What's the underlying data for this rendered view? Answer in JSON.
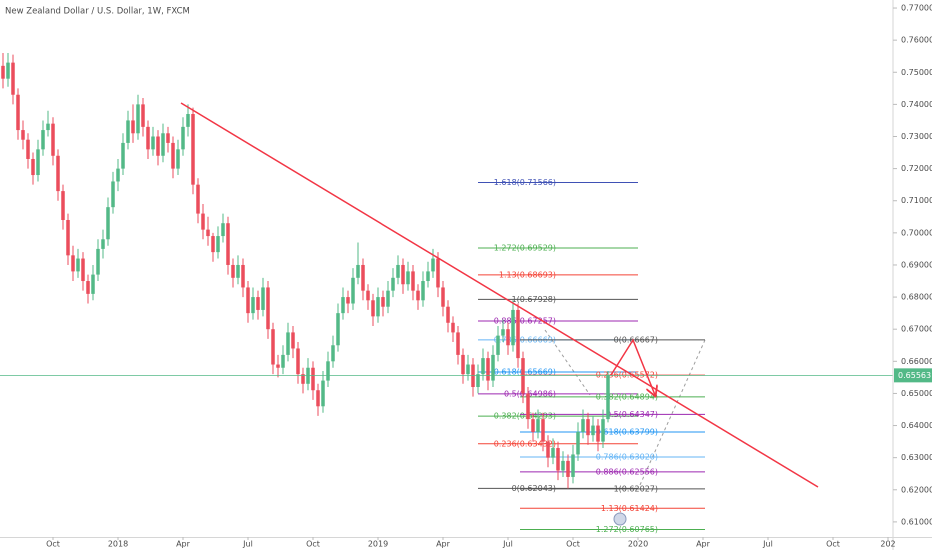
{
  "chart_data": {
    "type": "candlestick",
    "title": "New Zealand Dollar / U.S. Dollar, 1W, FXCM",
    "up_color": "#53b987",
    "down_color": "#eb4d5c",
    "xlim": [
      -0.6,
      178
    ],
    "ylim": [
      0.6053,
      0.7725
    ],
    "xticks": [
      {
        "value": 10,
        "label": "Oct"
      },
      {
        "value": 23,
        "label": "2018"
      },
      {
        "value": 36,
        "label": "Apr"
      },
      {
        "value": 49,
        "label": "Jul"
      },
      {
        "value": 62,
        "label": "Oct"
      },
      {
        "value": 75,
        "label": "2019"
      },
      {
        "value": 88,
        "label": "Apr"
      },
      {
        "value": 101,
        "label": "Jul"
      },
      {
        "value": 114,
        "label": "Oct"
      },
      {
        "value": 127,
        "label": "2020"
      },
      {
        "value": 140,
        "label": "Apr"
      },
      {
        "value": 153,
        "label": "Jul"
      },
      {
        "value": 166,
        "label": "Oct"
      },
      {
        "value": 177,
        "label": "202"
      }
    ],
    "yticks": [
      {
        "value": 0.61,
        "label": "0.61000"
      },
      {
        "value": 0.62,
        "label": "0.62000"
      },
      {
        "value": 0.63,
        "label": "0.63000"
      },
      {
        "value": 0.64,
        "label": "0.64000"
      },
      {
        "value": 0.65,
        "label": "0.65000"
      },
      {
        "value": 0.66,
        "label": "0.66000"
      },
      {
        "value": 0.67,
        "label": "0.67000"
      },
      {
        "value": 0.68,
        "label": "0.68000"
      },
      {
        "value": 0.69,
        "label": "0.69000"
      },
      {
        "value": 0.7,
        "label": "0.70000"
      },
      {
        "value": 0.71,
        "label": "0.71000"
      },
      {
        "value": 0.72,
        "label": "0.72000"
      },
      {
        "value": 0.73,
        "label": "0.73000"
      },
      {
        "value": 0.74,
        "label": "0.74000"
      },
      {
        "value": 0.75,
        "label": "0.75000"
      },
      {
        "value": 0.76,
        "label": "0.76000"
      },
      {
        "value": 0.77,
        "label": "0.77000"
      }
    ],
    "last_price": {
      "value": 0.65563,
      "label": "0.65563",
      "color": "#53b987"
    },
    "candles": [
      [
        0.752,
        0.756,
        0.745,
        0.748
      ],
      [
        0.748,
        0.756,
        0.7455,
        0.753
      ],
      [
        0.753,
        0.7555,
        0.74,
        0.743
      ],
      [
        0.743,
        0.745,
        0.729,
        0.732
      ],
      [
        0.732,
        0.735,
        0.726,
        0.729
      ],
      [
        0.729,
        0.731,
        0.72,
        0.723
      ],
      [
        0.723,
        0.725,
        0.715,
        0.718
      ],
      [
        0.718,
        0.729,
        0.716,
        0.726
      ],
      [
        0.726,
        0.735,
        0.724,
        0.732
      ],
      [
        0.732,
        0.738,
        0.73,
        0.734
      ],
      [
        0.734,
        0.736,
        0.721,
        0.724
      ],
      [
        0.724,
        0.726,
        0.71,
        0.713
      ],
      [
        0.713,
        0.715,
        0.701,
        0.704
      ],
      [
        0.704,
        0.706,
        0.69,
        0.693
      ],
      [
        0.693,
        0.696,
        0.685,
        0.688
      ],
      [
        0.688,
        0.695,
        0.686,
        0.692
      ],
      [
        0.692,
        0.694,
        0.682,
        0.685
      ],
      [
        0.685,
        0.687,
        0.678,
        0.681
      ],
      [
        0.681,
        0.69,
        0.679,
        0.687
      ],
      [
        0.687,
        0.698,
        0.685,
        0.695
      ],
      [
        0.695,
        0.701,
        0.692,
        0.698
      ],
      [
        0.698,
        0.711,
        0.696,
        0.708
      ],
      [
        0.708,
        0.719,
        0.706,
        0.716
      ],
      [
        0.716,
        0.723,
        0.713,
        0.72
      ],
      [
        0.72,
        0.731,
        0.718,
        0.728
      ],
      [
        0.728,
        0.738,
        0.726,
        0.735
      ],
      [
        0.735,
        0.74,
        0.728,
        0.731
      ],
      [
        0.731,
        0.743,
        0.729,
        0.74
      ],
      [
        0.74,
        0.742,
        0.73,
        0.733
      ],
      [
        0.733,
        0.735,
        0.723,
        0.726
      ],
      [
        0.726,
        0.733,
        0.724,
        0.73
      ],
      [
        0.73,
        0.732,
        0.721,
        0.724
      ],
      [
        0.724,
        0.734,
        0.722,
        0.731
      ],
      [
        0.731,
        0.733,
        0.725,
        0.728
      ],
      [
        0.728,
        0.73,
        0.717,
        0.72
      ],
      [
        0.72,
        0.729,
        0.718,
        0.726
      ],
      [
        0.726,
        0.736,
        0.724,
        0.733
      ],
      [
        0.733,
        0.74,
        0.73,
        0.737
      ],
      [
        0.737,
        0.739,
        0.712,
        0.715
      ],
      [
        0.715,
        0.717,
        0.703,
        0.706
      ],
      [
        0.706,
        0.709,
        0.698,
        0.701
      ],
      [
        0.701,
        0.705,
        0.696,
        0.699
      ],
      [
        0.699,
        0.7,
        0.691,
        0.694
      ],
      [
        0.694,
        0.702,
        0.692,
        0.699
      ],
      [
        0.699,
        0.706,
        0.697,
        0.703
      ],
      [
        0.703,
        0.705,
        0.687,
        0.69
      ],
      [
        0.69,
        0.692,
        0.683,
        0.686
      ],
      [
        0.686,
        0.693,
        0.684,
        0.69
      ],
      [
        0.69,
        0.692,
        0.68,
        0.683
      ],
      [
        0.683,
        0.685,
        0.672,
        0.675
      ],
      [
        0.675,
        0.683,
        0.673,
        0.68
      ],
      [
        0.68,
        0.682,
        0.673,
        0.676
      ],
      [
        0.676,
        0.686,
        0.674,
        0.683
      ],
      [
        0.683,
        0.685,
        0.667,
        0.67
      ],
      [
        0.67,
        0.672,
        0.656,
        0.659
      ],
      [
        0.659,
        0.662,
        0.655,
        0.658
      ],
      [
        0.658,
        0.665,
        0.656,
        0.662
      ],
      [
        0.662,
        0.672,
        0.66,
        0.669
      ],
      [
        0.669,
        0.671,
        0.661,
        0.664
      ],
      [
        0.664,
        0.666,
        0.653,
        0.656
      ],
      [
        0.656,
        0.658,
        0.65,
        0.653
      ],
      [
        0.653,
        0.661,
        0.651,
        0.658
      ],
      [
        0.658,
        0.66,
        0.648,
        0.651
      ],
      [
        0.651,
        0.653,
        0.643,
        0.646
      ],
      [
        0.646,
        0.657,
        0.644,
        0.654
      ],
      [
        0.654,
        0.663,
        0.652,
        0.66
      ],
      [
        0.66,
        0.668,
        0.658,
        0.665
      ],
      [
        0.665,
        0.678,
        0.663,
        0.675
      ],
      [
        0.675,
        0.683,
        0.673,
        0.68
      ],
      [
        0.68,
        0.682,
        0.675,
        0.678
      ],
      [
        0.678,
        0.689,
        0.676,
        0.686
      ],
      [
        0.686,
        0.697,
        0.684,
        0.69
      ],
      [
        0.69,
        0.692,
        0.679,
        0.682
      ],
      [
        0.682,
        0.684,
        0.676,
        0.679
      ],
      [
        0.679,
        0.681,
        0.671,
        0.674
      ],
      [
        0.674,
        0.683,
        0.672,
        0.68
      ],
      [
        0.68,
        0.682,
        0.674,
        0.677
      ],
      [
        0.677,
        0.685,
        0.675,
        0.682
      ],
      [
        0.682,
        0.689,
        0.68,
        0.686
      ],
      [
        0.686,
        0.693,
        0.684,
        0.69
      ],
      [
        0.69,
        0.692,
        0.681,
        0.684
      ],
      [
        0.684,
        0.691,
        0.682,
        0.688
      ],
      [
        0.688,
        0.69,
        0.679,
        0.682
      ],
      [
        0.682,
        0.684,
        0.676,
        0.679
      ],
      [
        0.679,
        0.688,
        0.677,
        0.685
      ],
      [
        0.685,
        0.691,
        0.683,
        0.688
      ],
      [
        0.688,
        0.695,
        0.686,
        0.692
      ],
      [
        0.692,
        0.694,
        0.68,
        0.683
      ],
      [
        0.683,
        0.685,
        0.674,
        0.677
      ],
      [
        0.677,
        0.679,
        0.669,
        0.672
      ],
      [
        0.672,
        0.674,
        0.666,
        0.669
      ],
      [
        0.669,
        0.671,
        0.659,
        0.662
      ],
      [
        0.662,
        0.664,
        0.653,
        0.656
      ],
      [
        0.656,
        0.662,
        0.654,
        0.659
      ],
      [
        0.659,
        0.661,
        0.649,
        0.652
      ],
      [
        0.652,
        0.659,
        0.65,
        0.656
      ],
      [
        0.656,
        0.664,
        0.654,
        0.661
      ],
      [
        0.661,
        0.663,
        0.651,
        0.654
      ],
      [
        0.654,
        0.665,
        0.652,
        0.662
      ],
      [
        0.662,
        0.671,
        0.66,
        0.668
      ],
      [
        0.668,
        0.673,
        0.666,
        0.67
      ],
      [
        0.67,
        0.672,
        0.662,
        0.665
      ],
      [
        0.665,
        0.679,
        0.663,
        0.676
      ],
      [
        0.676,
        0.678,
        0.658,
        0.661
      ],
      [
        0.661,
        0.663,
        0.647,
        0.65
      ],
      [
        0.65,
        0.652,
        0.639,
        0.642
      ],
      [
        0.642,
        0.644,
        0.635,
        0.638
      ],
      [
        0.638,
        0.645,
        0.636,
        0.642
      ],
      [
        0.642,
        0.644,
        0.632,
        0.635
      ],
      [
        0.635,
        0.637,
        0.627,
        0.63
      ],
      [
        0.63,
        0.636,
        0.628,
        0.633
      ],
      [
        0.633,
        0.635,
        0.623,
        0.626
      ],
      [
        0.626,
        0.632,
        0.624,
        0.629
      ],
      [
        0.629,
        0.631,
        0.6204,
        0.624
      ],
      [
        0.624,
        0.634,
        0.622,
        0.631
      ],
      [
        0.631,
        0.641,
        0.629,
        0.638
      ],
      [
        0.638,
        0.645,
        0.636,
        0.642
      ],
      [
        0.642,
        0.644,
        0.634,
        0.637
      ],
      [
        0.637,
        0.643,
        0.635,
        0.64
      ],
      [
        0.64,
        0.642,
        0.632,
        0.635
      ],
      [
        0.635,
        0.645,
        0.633,
        0.642
      ],
      [
        0.642,
        0.657,
        0.641,
        0.6556
      ]
    ],
    "fibs": [
      {
        "levels": [
          {
            "label": "1.618(0.71566)",
            "value": 0.71566,
            "color": "#3f51b5"
          },
          {
            "label": "1.272(0.69529)",
            "value": 0.69529,
            "color": "#4caf50"
          },
          {
            "label": "1.13(0.68693)",
            "value": 0.68693,
            "color": "#f44336"
          },
          {
            "label": "1(0.67928)",
            "value": 0.67928,
            "color": "#555555"
          },
          {
            "label": "0.886(0.67257)",
            "value": 0.67257,
            "color": "#9c27b0"
          },
          {
            "label": "0.786(0.66669)",
            "value": 0.66669,
            "color": "#64b5f6"
          },
          {
            "label": "0.618(0.65669)",
            "value": 0.65669,
            "color": "#2196f3"
          },
          {
            "label": "0.5(0.64986)",
            "value": 0.64986,
            "color": "#9c27b0"
          },
          {
            "label": "0.382(0.64293)",
            "value": 0.64293,
            "color": "#4caf50"
          },
          {
            "label": "0.236(0.63432)",
            "value": 0.63432,
            "color": "#f44336"
          },
          {
            "label": "0(0.62043)",
            "value": 0.62043,
            "color": "#555555"
          }
        ]
      },
      {
        "levels": [
          {
            "label": "0(0.66667)",
            "value": 0.66667,
            "color": "#555555"
          },
          {
            "label": "0.236(0.65572)",
            "value": 0.65572,
            "color": "#f44336"
          },
          {
            "label": "0.382(0.64894)",
            "value": 0.64894,
            "color": "#4caf50"
          },
          {
            "label": "0.5(0.64347)",
            "value": 0.64347,
            "color": "#9c27b0"
          },
          {
            "label": "0.618(0.63799)",
            "value": 0.63799,
            "color": "#2196f3"
          },
          {
            "label": "0.786(0.63020)",
            "value": 0.6302,
            "color": "#64b5f6"
          },
          {
            "label": "0.886(0.62556)",
            "value": 0.62556,
            "color": "#9c27b0"
          },
          {
            "label": "1(0.62027)",
            "value": 0.62027,
            "color": "#555555"
          },
          {
            "label": "1.13(0.61424)",
            "value": 0.61424,
            "color": "#f44336"
          },
          {
            "label": "1.272(0.60765)",
            "value": 0.60765,
            "color": "#4caf50"
          }
        ]
      }
    ]
  }
}
